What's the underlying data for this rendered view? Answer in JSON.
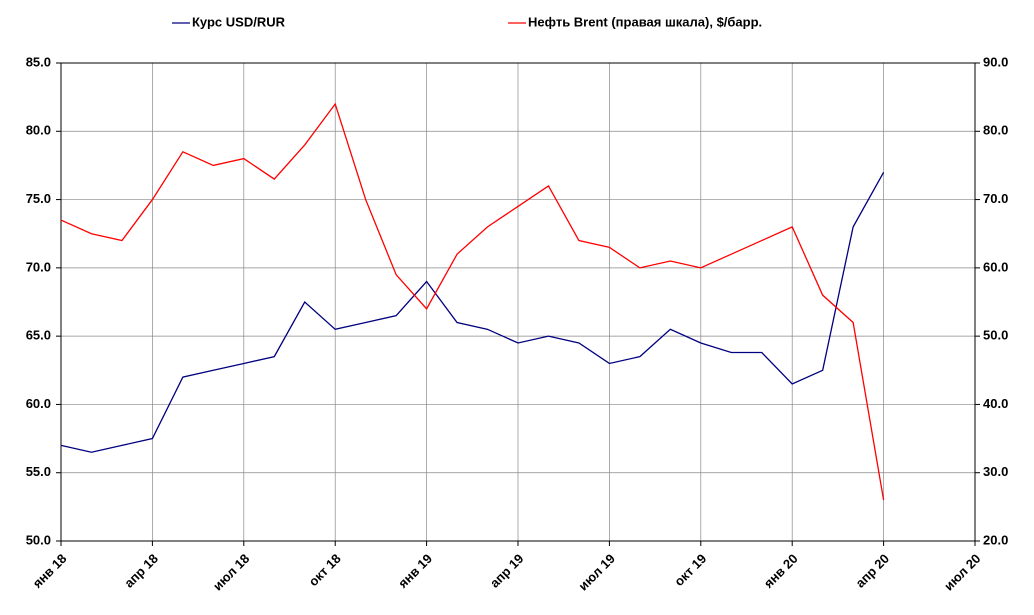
{
  "chart_data": {
    "type": "line",
    "x": [
      "2018-01",
      "2018-02",
      "2018-03",
      "2018-04",
      "2018-05",
      "2018-06",
      "2018-07",
      "2018-08",
      "2018-09",
      "2018-10",
      "2018-11",
      "2018-12",
      "2019-01",
      "2019-02",
      "2019-03",
      "2019-04",
      "2019-05",
      "2019-06",
      "2019-07",
      "2019-08",
      "2019-09",
      "2019-10",
      "2019-11",
      "2019-12",
      "2020-01",
      "2020-02",
      "2020-03",
      "2020-04"
    ],
    "series": [
      {
        "name": "Курс USD/RUR",
        "color": "#000080",
        "values": [
          57.0,
          56.5,
          57.0,
          57.5,
          62.0,
          62.5,
          63.0,
          63.5,
          67.5,
          65.5,
          66.0,
          66.5,
          69.0,
          66.0,
          65.5,
          64.5,
          65.0,
          64.5,
          63.0,
          63.5,
          65.5,
          64.5,
          63.8,
          63.8,
          61.5,
          62.5,
          73.0,
          77.0
        ]
      },
      {
        "name": "Нефть Brent (правая шкала), $/барр.",
        "color": "#ff0000",
        "axis": "y2",
        "values": [
          67,
          65,
          64,
          70,
          77,
          75,
          76,
          73,
          78,
          84,
          70,
          59,
          54,
          62,
          66,
          69,
          72,
          64,
          63,
          60,
          61,
          60,
          62,
          64,
          66,
          56,
          52,
          26
        ]
      }
    ],
    "xlim": [
      "2018-01",
      "2020-07"
    ],
    "xticks": [
      {
        "value": "2018-01",
        "label": "янв 18"
      },
      {
        "value": "2018-04",
        "label": "апр 18"
      },
      {
        "value": "2018-07",
        "label": "июл 18"
      },
      {
        "value": "2018-10",
        "label": "окт 18"
      },
      {
        "value": "2019-01",
        "label": "янв 19"
      },
      {
        "value": "2019-04",
        "label": "апр 19"
      },
      {
        "value": "2019-07",
        "label": "июл 19"
      },
      {
        "value": "2019-10",
        "label": "окт 19"
      },
      {
        "value": "2020-01",
        "label": "янв 20"
      },
      {
        "value": "2020-04",
        "label": "апр 20"
      },
      {
        "value": "2020-07",
        "label": "июл 20"
      }
    ],
    "ylim": [
      50,
      85
    ],
    "yticks": [
      {
        "value": 50,
        "label": "50.0"
      },
      {
        "value": 55,
        "label": "55.0"
      },
      {
        "value": 60,
        "label": "60.0"
      },
      {
        "value": 65,
        "label": "65.0"
      },
      {
        "value": 70,
        "label": "70.0"
      },
      {
        "value": 75,
        "label": "75.0"
      },
      {
        "value": 80,
        "label": "80.0"
      },
      {
        "value": 85,
        "label": "85.0"
      }
    ],
    "y2lim": [
      20,
      90
    ],
    "y2ticks": [
      {
        "value": 20,
        "label": "20.0"
      },
      {
        "value": 30,
        "label": "30.0"
      },
      {
        "value": 40,
        "label": "40.0"
      },
      {
        "value": 50,
        "label": "50.0"
      },
      {
        "value": 60,
        "label": "60.0"
      },
      {
        "value": 70,
        "label": "70.0"
      },
      {
        "value": 80,
        "label": "80.0"
      },
      {
        "value": 90,
        "label": "90.0"
      }
    ],
    "grid": true
  }
}
